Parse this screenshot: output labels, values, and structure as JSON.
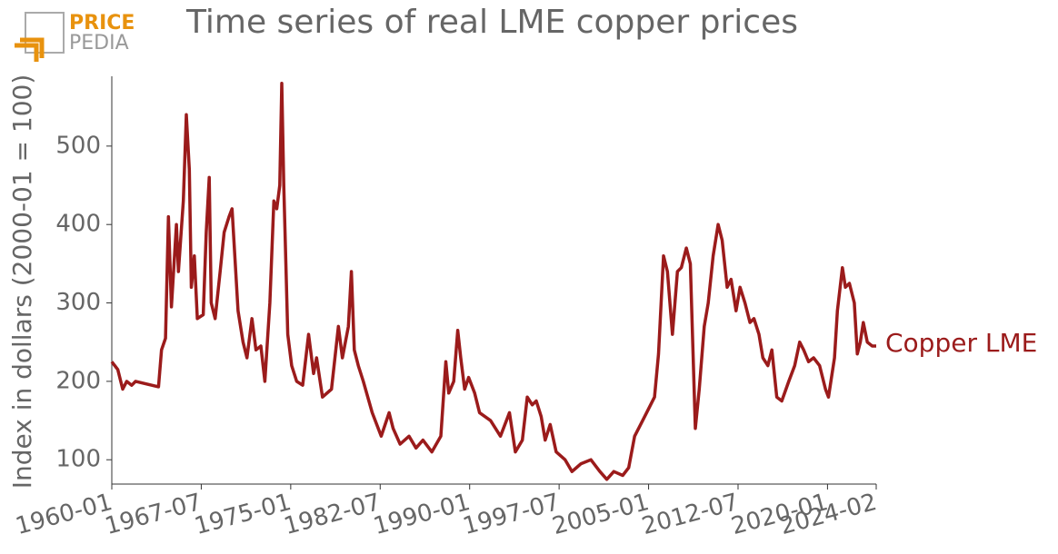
{
  "logo": {
    "top": "PRICE",
    "bottom": "PEDIA"
  },
  "chart_data": {
    "type": "line",
    "title": "Time series of real LME copper prices",
    "y_label": "Index in dollars (2000-01 = 100)",
    "x": [
      "1960-01",
      "1960-07",
      "1960-12",
      "1961-04",
      "1961-09",
      "1962-01",
      "1963-12",
      "1964-03",
      "1964-07",
      "1964-10",
      "1965-01",
      "1965-06",
      "1965-08",
      "1966-01",
      "1966-04",
      "1966-07",
      "1966-09",
      "1966-12",
      "1967-03",
      "1967-09",
      "1967-12",
      "1968-03",
      "1968-05",
      "1968-09",
      "1969-02",
      "1969-06",
      "1969-11",
      "1970-02",
      "1970-08",
      "1971-01",
      "1971-05",
      "1971-10",
      "1972-02",
      "1972-07",
      "1972-11",
      "1973-04",
      "1973-08",
      "1973-11",
      "1974-02",
      "1974-04",
      "1974-06",
      "1974-10",
      "1975-02",
      "1975-07",
      "1976-01",
      "1976-07",
      "1976-12",
      "1977-03",
      "1977-09",
      "1978-06",
      "1979-01",
      "1979-05",
      "1979-11",
      "1980-02",
      "1980-05",
      "1980-09",
      "1981-02",
      "1981-11",
      "1982-08",
      "1983-04",
      "1983-08",
      "1984-03",
      "1984-12",
      "1985-07",
      "1986-02",
      "1986-11",
      "1987-08",
      "1988-01",
      "1988-04",
      "1988-09",
      "1989-01",
      "1989-04",
      "1989-08",
      "1989-12",
      "1990-06",
      "1990-11",
      "1991-10",
      "1992-08",
      "1993-05",
      "1993-11",
      "1994-06",
      "1994-11",
      "1995-04",
      "1995-08",
      "1996-01",
      "1996-05",
      "1996-10",
      "1997-04",
      "1998-01",
      "1998-08",
      "1999-05",
      "2000-03",
      "2000-12",
      "2001-07",
      "2002-02",
      "2002-11",
      "2003-05",
      "2003-11",
      "2004-05",
      "2004-11",
      "2005-07",
      "2005-11",
      "2006-04",
      "2006-08",
      "2007-01",
      "2007-06",
      "2007-10",
      "2008-03",
      "2008-07",
      "2008-12",
      "2009-04",
      "2009-09",
      "2010-01",
      "2010-06",
      "2010-11",
      "2011-03",
      "2011-08",
      "2011-12",
      "2012-05",
      "2012-09",
      "2013-02",
      "2013-07",
      "2013-11",
      "2014-04",
      "2014-08",
      "2015-01",
      "2015-05",
      "2015-10",
      "2016-03",
      "2016-10",
      "2017-04",
      "2017-09",
      "2018-01",
      "2018-06",
      "2018-11",
      "2019-05",
      "2019-11",
      "2020-02",
      "2020-08",
      "2020-11",
      "2021-04",
      "2021-07",
      "2021-11",
      "2022-04",
      "2022-07",
      "2022-10",
      "2023-01",
      "2023-05",
      "2023-10",
      "2024-02"
    ],
    "series": [
      {
        "name": "Copper LME",
        "color": "#9b1b1b",
        "values": [
          225,
          215,
          190,
          200,
          195,
          200,
          193,
          240,
          255,
          410,
          295,
          400,
          340,
          430,
          540,
          470,
          320,
          360,
          280,
          285,
          390,
          460,
          300,
          280,
          340,
          390,
          410,
          420,
          290,
          250,
          230,
          280,
          240,
          245,
          200,
          300,
          430,
          420,
          450,
          580,
          450,
          260,
          220,
          200,
          195,
          260,
          210,
          230,
          180,
          190,
          270,
          230,
          270,
          340,
          240,
          220,
          200,
          160,
          130,
          160,
          140,
          120,
          130,
          115,
          125,
          110,
          130,
          225,
          185,
          200,
          265,
          230,
          190,
          205,
          185,
          160,
          150,
          130,
          160,
          110,
          125,
          180,
          170,
          175,
          155,
          125,
          145,
          110,
          100,
          85,
          95,
          100,
          85,
          75,
          85,
          80,
          90,
          130,
          145,
          160,
          180,
          235,
          360,
          340,
          260,
          340,
          345,
          370,
          350,
          140,
          190,
          270,
          300,
          360,
          400,
          380,
          320,
          330,
          290,
          320,
          300,
          275,
          280,
          260,
          230,
          220,
          240,
          180,
          175,
          200,
          220,
          250,
          240,
          225,
          230,
          220,
          190,
          180,
          230,
          290,
          345,
          320,
          325,
          300,
          235,
          250,
          275,
          250,
          245,
          245
        ]
      }
    ],
    "xlim": [
      "1960-01",
      "2024-02"
    ],
    "xticks": [
      "1960-01",
      "1967-07",
      "1975-01",
      "1982-07",
      "1990-01",
      "1997-07",
      "2005-01",
      "2012-07",
      "2020-01",
      "2024-02"
    ],
    "ylim": [
      69,
      589
    ],
    "yticks": [
      100,
      200,
      300,
      400,
      500
    ]
  }
}
